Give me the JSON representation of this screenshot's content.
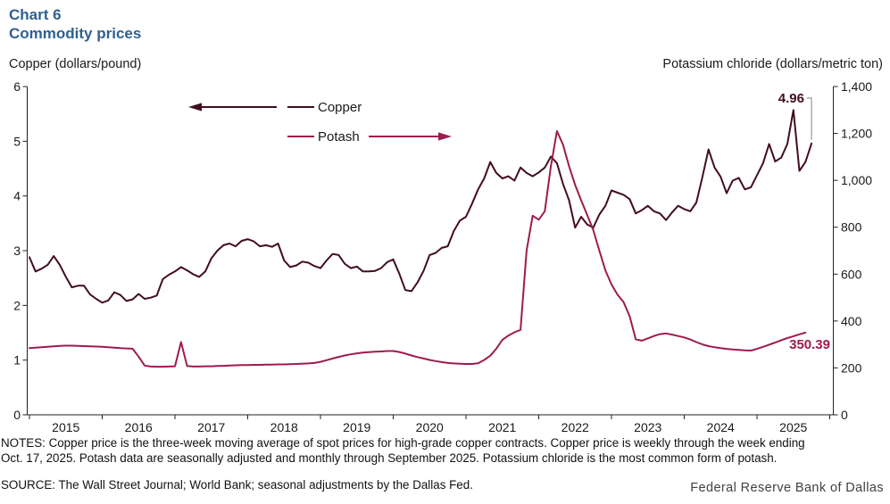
{
  "header": {
    "chart_label": "Chart 6",
    "title": "Commodity prices"
  },
  "axes": {
    "left_title": "Copper (dollars/pound)",
    "right_title": "Potassium chloride (dollars/metric ton)",
    "left_ticks": [
      "6",
      "5",
      "4",
      "3",
      "2",
      "1",
      "0"
    ],
    "right_ticks": [
      "1,400",
      "1,200",
      "1,000",
      "800",
      "600",
      "400",
      "200",
      "0"
    ],
    "x_ticks": [
      "2015",
      "2016",
      "2017",
      "2018",
      "2019",
      "2020",
      "2021",
      "2022",
      "2023",
      "2024",
      "2025"
    ]
  },
  "legend": {
    "copper_label": "Copper",
    "potash_label": "Potash"
  },
  "annotations": {
    "copper_last_value": "4.96",
    "potash_last_value": "350.39"
  },
  "notes": {
    "line1": "NOTES: Copper price is the three-week moving average of spot prices for high-grade copper contracts. Copper price is weekly through the week ending",
    "line2": "Oct. 17, 2025. Potash data are seasonally adjusted and monthly through September 2025. Potassium chloride is the most common form of potash."
  },
  "source": "SOURCE: The Wall Street Journal; World Bank; seasonal adjustments by the Dallas Fed.",
  "branding": "Federal Reserve Bank of Dallas",
  "colors": {
    "title_blue": "#2f608f",
    "copper": "#420d21",
    "potash": "#9e1b4f",
    "leader_gray": "#97999b",
    "axis": "#231f20"
  },
  "chart_data": {
    "type": "line",
    "title": "Commodity prices",
    "x_start": "2015-01",
    "x_frequency": "monthly",
    "x_range_years": [
      2015,
      2025.8
    ],
    "left_axis": {
      "label": "Copper (dollars/pound)",
      "range": [
        0,
        6
      ]
    },
    "right_axis": {
      "label": "Potassium chloride (dollars/metric ton)",
      "range": [
        0,
        1400
      ]
    },
    "legend_position": "top-left-inside",
    "grid": false,
    "series": [
      {
        "name": "Copper",
        "axis": "left",
        "units": "dollars/pound",
        "last_point_label": "4.96",
        "values": [
          2.88,
          2.62,
          2.67,
          2.74,
          2.9,
          2.74,
          2.52,
          2.33,
          2.36,
          2.36,
          2.2,
          2.12,
          2.05,
          2.09,
          2.24,
          2.19,
          2.08,
          2.11,
          2.21,
          2.12,
          2.14,
          2.18,
          2.48,
          2.56,
          2.62,
          2.7,
          2.64,
          2.57,
          2.52,
          2.62,
          2.86,
          3.0,
          3.1,
          3.13,
          3.08,
          3.18,
          3.21,
          3.17,
          3.08,
          3.1,
          3.07,
          3.13,
          2.82,
          2.7,
          2.73,
          2.8,
          2.78,
          2.72,
          2.68,
          2.82,
          2.94,
          2.92,
          2.76,
          2.68,
          2.71,
          2.62,
          2.62,
          2.63,
          2.68,
          2.79,
          2.84,
          2.58,
          2.28,
          2.26,
          2.42,
          2.63,
          2.92,
          2.96,
          3.05,
          3.08,
          3.36,
          3.55,
          3.62,
          3.86,
          4.12,
          4.32,
          4.62,
          4.42,
          4.32,
          4.36,
          4.28,
          4.52,
          4.42,
          4.36,
          4.43,
          4.52,
          4.72,
          4.6,
          4.22,
          3.92,
          3.42,
          3.62,
          3.48,
          3.42,
          3.66,
          3.82,
          4.1,
          4.06,
          4.02,
          3.94,
          3.68,
          3.74,
          3.82,
          3.72,
          3.68,
          3.56,
          3.7,
          3.82,
          3.76,
          3.72,
          3.88,
          4.35,
          4.85,
          4.52,
          4.35,
          4.05,
          4.28,
          4.33,
          4.12,
          4.16,
          4.38,
          4.6,
          4.95,
          4.63,
          4.7,
          4.95,
          5.57,
          4.46,
          4.62,
          4.96
        ]
      },
      {
        "name": "Potash",
        "axis": "right",
        "units": "dollars/metric ton",
        "last_point_label": "350.39",
        "values": [
          284,
          286,
          288,
          290,
          292,
          294,
          295,
          295,
          294,
          293,
          292,
          291,
          290,
          288,
          286,
          284,
          283,
          282,
          248,
          210,
          206,
          205,
          205,
          206,
          207,
          310,
          208,
          206,
          206,
          207,
          207,
          208,
          209,
          210,
          211,
          212,
          212,
          213,
          213,
          214,
          214,
          215,
          215,
          216,
          217,
          218,
          219,
          221,
          226,
          233,
          240,
          247,
          253,
          258,
          262,
          265,
          267,
          269,
          270,
          272,
          272,
          268,
          261,
          253,
          246,
          240,
          234,
          229,
          225,
          221,
          219,
          218,
          217,
          217,
          220,
          234,
          252,
          282,
          320,
          338,
          352,
          362,
          700,
          849,
          832,
          868,
          1060,
          1210,
          1152,
          1060,
          980,
          915,
          852,
          788,
          700,
          616,
          556,
          512,
          480,
          420,
          322,
          316,
          326,
          336,
          344,
          347,
          342,
          336,
          330,
          321,
          310,
          300,
          293,
          288,
          284,
          281,
          279,
          277,
          275,
          274,
          281,
          290,
          299,
          308,
          318,
          327,
          335,
          343,
          350.39
        ]
      }
    ]
  }
}
